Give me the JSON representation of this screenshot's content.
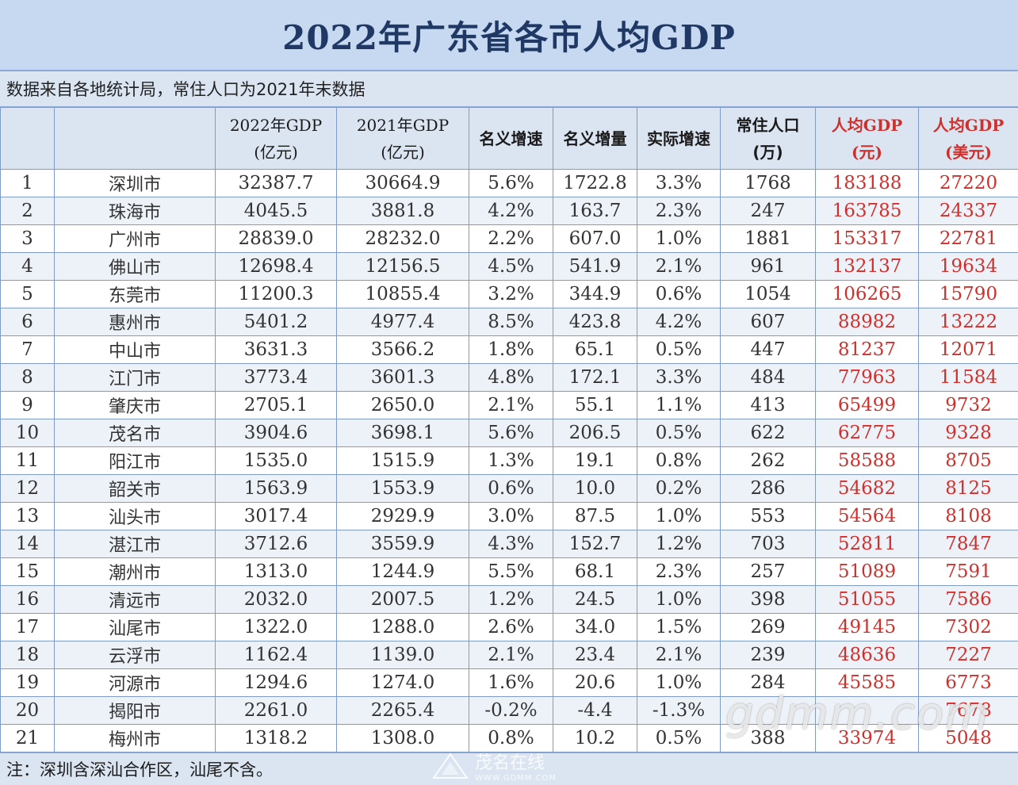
{
  "title": "2022年广东省各市人均GDP",
  "source_note": "数据来自各地统计局，常住人口为2021年末数据",
  "headers": {
    "gdp2022": [
      "2022年GDP",
      "(亿元)"
    ],
    "gdp2021": [
      "2021年GDP",
      "(亿元)"
    ],
    "nominal_growth": "名义增速",
    "nominal_increase": "名义增量",
    "real_growth": "实际增速",
    "population": [
      "常住人口",
      "(万)"
    ],
    "gdp_per_capita_cny": [
      "人均GDP",
      "(元)"
    ],
    "gdp_per_capita_usd": [
      "人均GDP",
      "(美元)"
    ]
  },
  "rows": [
    [
      "1",
      "深圳市",
      "32387.7",
      "30664.9",
      "5.6%",
      "1722.8",
      "3.3%",
      "1768",
      "183188",
      "27220"
    ],
    [
      "2",
      "珠海市",
      "4045.5",
      "3881.8",
      "4.2%",
      "163.7",
      "2.3%",
      "247",
      "163785",
      "24337"
    ],
    [
      "3",
      "广州市",
      "28839.0",
      "28232.0",
      "2.2%",
      "607.0",
      "1.0%",
      "1881",
      "153317",
      "22781"
    ],
    [
      "4",
      "佛山市",
      "12698.4",
      "12156.5",
      "4.5%",
      "541.9",
      "2.1%",
      "961",
      "132137",
      "19634"
    ],
    [
      "5",
      "东莞市",
      "11200.3",
      "10855.4",
      "3.2%",
      "344.9",
      "0.6%",
      "1054",
      "106265",
      "15790"
    ],
    [
      "6",
      "惠州市",
      "5401.2",
      "4977.4",
      "8.5%",
      "423.8",
      "4.2%",
      "607",
      "88982",
      "13222"
    ],
    [
      "7",
      "中山市",
      "3631.3",
      "3566.2",
      "1.8%",
      "65.1",
      "0.5%",
      "447",
      "81237",
      "12071"
    ],
    [
      "8",
      "江门市",
      "3773.4",
      "3601.3",
      "4.8%",
      "172.1",
      "3.3%",
      "484",
      "77963",
      "11584"
    ],
    [
      "9",
      "肇庆市",
      "2705.1",
      "2650.0",
      "2.1%",
      "55.1",
      "1.1%",
      "413",
      "65499",
      "9732"
    ],
    [
      "10",
      "茂名市",
      "3904.6",
      "3698.1",
      "5.6%",
      "206.5",
      "0.5%",
      "622",
      "62775",
      "9328"
    ],
    [
      "11",
      "阳江市",
      "1535.0",
      "1515.9",
      "1.3%",
      "19.1",
      "0.8%",
      "262",
      "58588",
      "8705"
    ],
    [
      "12",
      "韶关市",
      "1563.9",
      "1553.9",
      "0.6%",
      "10.0",
      "0.2%",
      "286",
      "54682",
      "8125"
    ],
    [
      "13",
      "汕头市",
      "3017.4",
      "2929.9",
      "3.0%",
      "87.5",
      "1.0%",
      "553",
      "54564",
      "8108"
    ],
    [
      "14",
      "湛江市",
      "3712.6",
      "3559.9",
      "4.3%",
      "152.7",
      "1.2%",
      "703",
      "52811",
      "7847"
    ],
    [
      "15",
      "潮州市",
      "1313.0",
      "1244.9",
      "5.5%",
      "68.1",
      "2.3%",
      "257",
      "51089",
      "7591"
    ],
    [
      "16",
      "清远市",
      "2032.0",
      "2007.5",
      "1.2%",
      "24.5",
      "1.0%",
      "398",
      "51055",
      "7586"
    ],
    [
      "17",
      "汕尾市",
      "1322.0",
      "1288.0",
      "2.6%",
      "34.0",
      "1.5%",
      "269",
      "49145",
      "7302"
    ],
    [
      "18",
      "云浮市",
      "1162.4",
      "1139.0",
      "2.1%",
      "23.4",
      "2.1%",
      "239",
      "48636",
      "7227"
    ],
    [
      "19",
      "河源市",
      "1294.6",
      "1274.0",
      "1.6%",
      "20.6",
      "1.0%",
      "284",
      "45585",
      "6773"
    ],
    [
      "20",
      "揭阳市",
      "2261.0",
      "2265.4",
      "-0.2%",
      "-4.4",
      "-1.3%",
      "",
      "",
      "7678"
    ],
    [
      "21",
      "梅州市",
      "1318.2",
      "1308.0",
      "0.8%",
      "10.2",
      "0.5%",
      "388",
      "33974",
      "5048"
    ]
  ],
  "footnote": "注：深圳含深汕合作区，汕尾不含。",
  "watermark_main": "gdmm.com",
  "watermark_brand": "茂名在线",
  "watermark_url": "WWW.GDMM.COM",
  "colors": {
    "accent_red": "#d0302c",
    "title_blue": "#1f3864",
    "header_bg": "#dbe5f1"
  }
}
